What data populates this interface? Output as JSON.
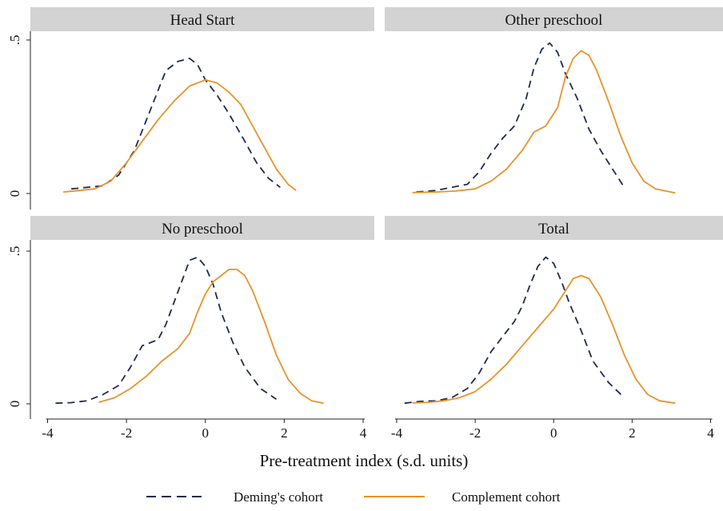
{
  "chart_data": {
    "type": "line",
    "xlabel": "Pre-treatment index (s.d. units)",
    "x_ticks": [
      "-4",
      "-2",
      "0",
      "2",
      "4"
    ],
    "y_ticks": [
      "0",
      ".5"
    ],
    "xlim": [
      -4,
      4
    ],
    "ylim": [
      0,
      0.5
    ],
    "grid": false,
    "legend": {
      "position": "bottom",
      "entries": [
        {
          "label": "Deming's cohort",
          "color": "#1f2a4f",
          "style": "dashed"
        },
        {
          "label": "Complement cohort",
          "color": "#e8922a",
          "style": "solid"
        }
      ]
    },
    "panels": [
      {
        "title": "Head Start",
        "series": [
          {
            "name": "Deming's cohort",
            "color": "#1f2a4f",
            "style": "dashed",
            "x": [
              -3.4,
              -3.0,
              -2.6,
              -2.2,
              -1.8,
              -1.4,
              -1.0,
              -0.7,
              -0.4,
              -0.2,
              0.0,
              0.3,
              0.6,
              1.0,
              1.3,
              1.6,
              1.9
            ],
            "y": [
              0.015,
              0.02,
              0.025,
              0.06,
              0.14,
              0.27,
              0.4,
              0.43,
              0.44,
              0.42,
              0.37,
              0.32,
              0.26,
              0.17,
              0.1,
              0.05,
              0.02
            ]
          },
          {
            "name": "Complement cohort",
            "color": "#e8922a",
            "style": "solid",
            "x": [
              -3.6,
              -3.2,
              -2.8,
              -2.4,
              -2.0,
              -1.6,
              -1.2,
              -0.8,
              -0.4,
              -0.2,
              0.0,
              0.3,
              0.6,
              0.9,
              1.2,
              1.5,
              1.8,
              2.1,
              2.3
            ],
            "y": [
              0.005,
              0.01,
              0.015,
              0.04,
              0.1,
              0.17,
              0.24,
              0.3,
              0.35,
              0.36,
              0.37,
              0.36,
              0.33,
              0.29,
              0.22,
              0.15,
              0.08,
              0.03,
              0.01
            ]
          }
        ]
      },
      {
        "title": "Other preschool",
        "series": [
          {
            "name": "Deming's cohort",
            "color": "#1f2a4f",
            "style": "dashed",
            "x": [
              -3.5,
              -3.0,
              -2.6,
              -2.2,
              -1.9,
              -1.6,
              -1.3,
              -1.0,
              -0.7,
              -0.5,
              -0.3,
              -0.1,
              0.1,
              0.3,
              0.6,
              0.9,
              1.2,
              1.5,
              1.8
            ],
            "y": [
              0.005,
              0.01,
              0.02,
              0.03,
              0.07,
              0.13,
              0.18,
              0.22,
              0.31,
              0.41,
              0.47,
              0.49,
              0.46,
              0.39,
              0.31,
              0.21,
              0.14,
              0.08,
              0.02
            ]
          },
          {
            "name": "Complement cohort",
            "color": "#e8922a",
            "style": "solid",
            "x": [
              -3.6,
              -3.0,
              -2.5,
              -2.0,
              -1.6,
              -1.2,
              -0.8,
              -0.5,
              -0.2,
              0.1,
              0.3,
              0.5,
              0.7,
              0.9,
              1.1,
              1.4,
              1.7,
              2.0,
              2.3,
              2.6,
              3.1
            ],
            "y": [
              0.003,
              0.005,
              0.008,
              0.015,
              0.04,
              0.08,
              0.14,
              0.2,
              0.22,
              0.28,
              0.38,
              0.44,
              0.465,
              0.45,
              0.4,
              0.3,
              0.19,
              0.1,
              0.04,
              0.015,
              0.002
            ]
          }
        ]
      },
      {
        "title": "No preschool",
        "series": [
          {
            "name": "Deming's cohort",
            "color": "#1f2a4f",
            "style": "dashed",
            "x": [
              -3.8,
              -3.4,
              -3.0,
              -2.6,
              -2.2,
              -1.9,
              -1.6,
              -1.4,
              -1.2,
              -1.0,
              -0.8,
              -0.6,
              -0.4,
              -0.2,
              0.0,
              0.2,
              0.4,
              0.7,
              1.0,
              1.4,
              1.8
            ],
            "y": [
              0.002,
              0.004,
              0.01,
              0.03,
              0.06,
              0.12,
              0.19,
              0.2,
              0.21,
              0.26,
              0.33,
              0.4,
              0.47,
              0.48,
              0.45,
              0.39,
              0.3,
              0.2,
              0.12,
              0.05,
              0.015
            ]
          },
          {
            "name": "Complement cohort",
            "color": "#e8922a",
            "style": "solid",
            "x": [
              -2.7,
              -2.3,
              -1.9,
              -1.5,
              -1.1,
              -0.7,
              -0.4,
              -0.2,
              0.0,
              0.2,
              0.4,
              0.6,
              0.8,
              1.0,
              1.2,
              1.5,
              1.8,
              2.1,
              2.4,
              2.7,
              3.0
            ],
            "y": [
              0.005,
              0.02,
              0.05,
              0.09,
              0.14,
              0.18,
              0.23,
              0.3,
              0.36,
              0.4,
              0.42,
              0.44,
              0.44,
              0.42,
              0.37,
              0.27,
              0.16,
              0.08,
              0.035,
              0.01,
              0.002
            ]
          }
        ]
      },
      {
        "title": "Total",
        "series": [
          {
            "name": "Deming's cohort",
            "color": "#1f2a4f",
            "style": "dashed",
            "x": [
              -3.8,
              -3.4,
              -3.0,
              -2.6,
              -2.2,
              -1.9,
              -1.6,
              -1.3,
              -1.0,
              -0.8,
              -0.6,
              -0.4,
              -0.2,
              0.0,
              0.2,
              0.4,
              0.7,
              1.0,
              1.4,
              1.8
            ],
            "y": [
              0.002,
              0.008,
              0.01,
              0.02,
              0.05,
              0.1,
              0.17,
              0.22,
              0.27,
              0.32,
              0.39,
              0.45,
              0.48,
              0.46,
              0.4,
              0.33,
              0.24,
              0.14,
              0.07,
              0.02
            ]
          },
          {
            "name": "Complement cohort",
            "color": "#e8922a",
            "style": "solid",
            "x": [
              -3.6,
              -3.2,
              -2.8,
              -2.4,
              -2.0,
              -1.6,
              -1.2,
              -0.8,
              -0.4,
              0.0,
              0.3,
              0.5,
              0.7,
              0.9,
              1.2,
              1.5,
              1.8,
              2.1,
              2.4,
              2.7,
              3.1
            ],
            "y": [
              0.003,
              0.005,
              0.01,
              0.02,
              0.04,
              0.08,
              0.13,
              0.19,
              0.25,
              0.31,
              0.37,
              0.41,
              0.42,
              0.41,
              0.35,
              0.26,
              0.16,
              0.08,
              0.03,
              0.01,
              0.002
            ]
          }
        ]
      }
    ]
  }
}
